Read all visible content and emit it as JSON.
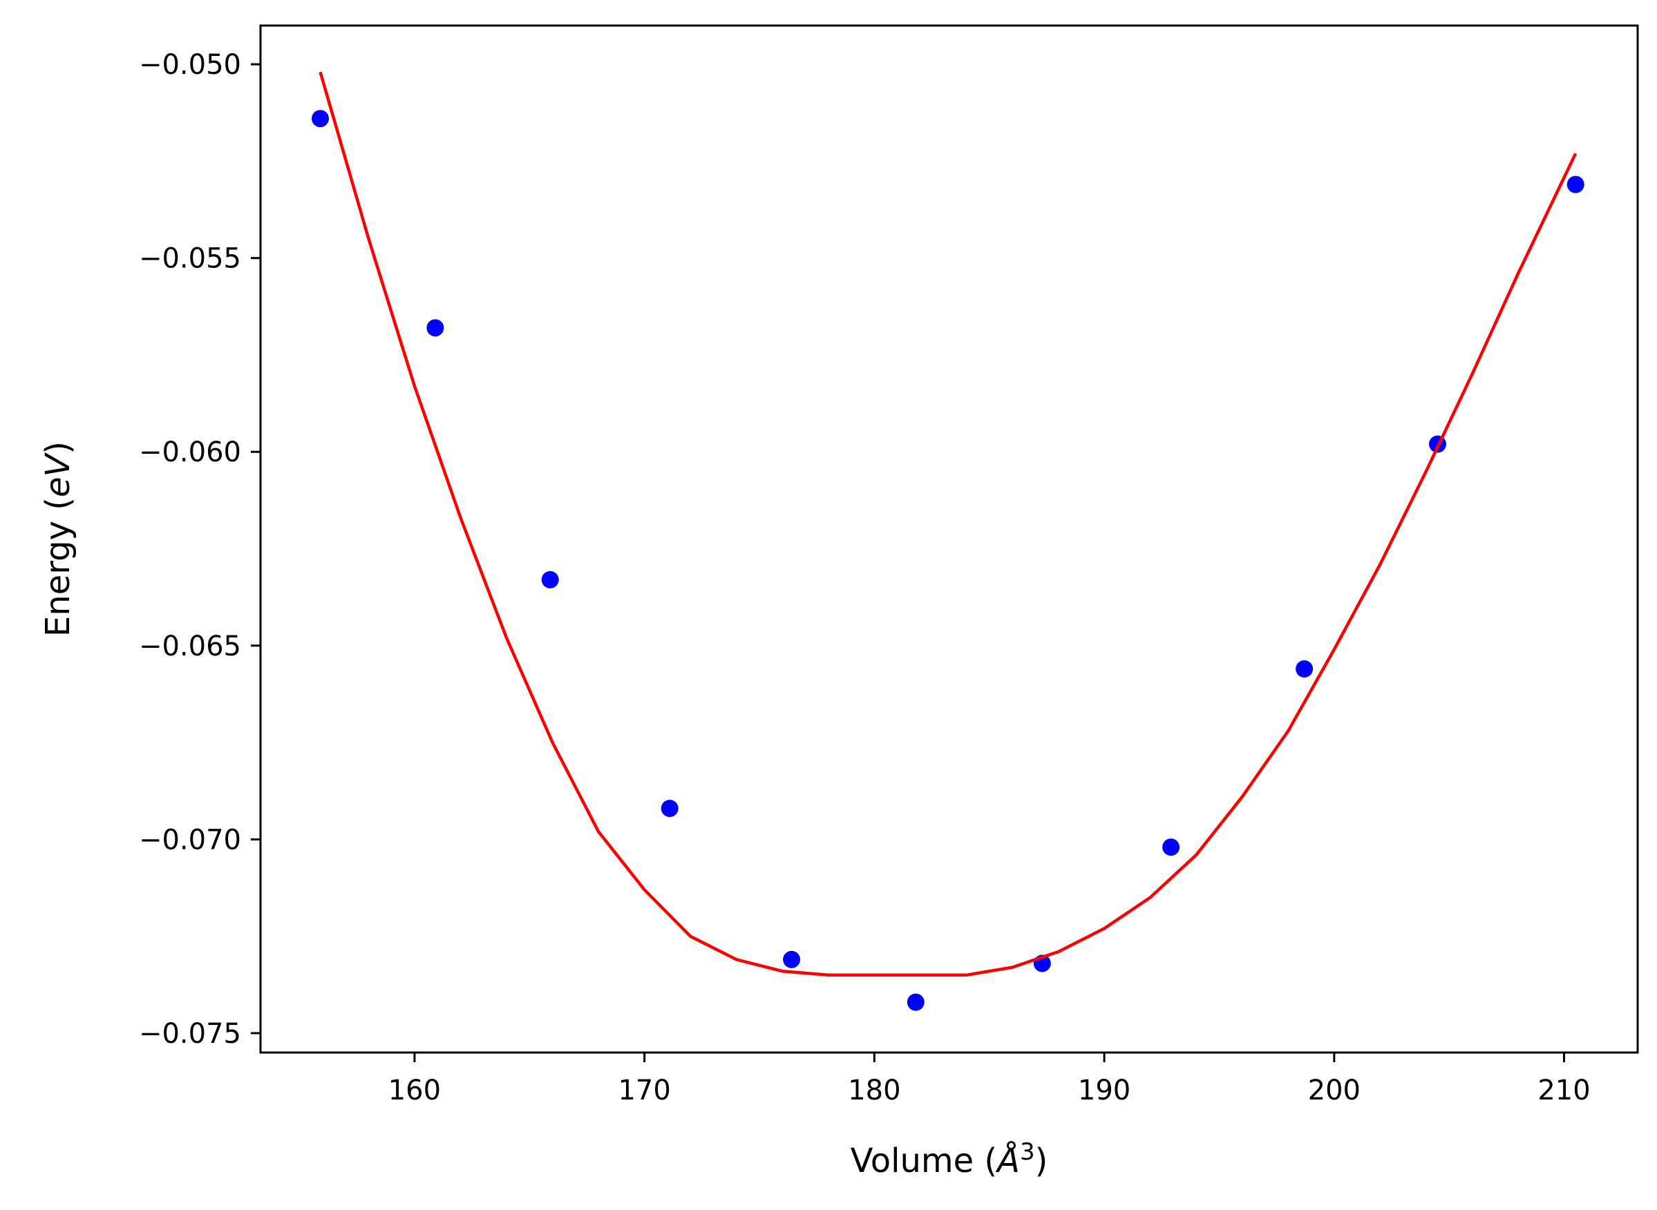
{
  "chart_data": {
    "type": "scatter",
    "title": "",
    "xlabel": "Volume (Å³)",
    "xlabel_parts": {
      "main": "Volume (",
      "italic": "Å",
      "sup": "3",
      "close": ")"
    },
    "ylabel": "Energy (eV)",
    "ylabel_parts": {
      "main": "Energy (",
      "italic": "eV",
      "close": ")"
    },
    "xlim": [
      153.3,
      213.2
    ],
    "ylim": [
      -0.0755,
      -0.049
    ],
    "xticks": [
      160,
      170,
      180,
      190,
      200,
      210
    ],
    "xtick_labels": [
      "160",
      "170",
      "180",
      "190",
      "200",
      "210"
    ],
    "yticks": [
      -0.05,
      -0.055,
      -0.06,
      -0.065,
      -0.07,
      -0.075
    ],
    "ytick_labels": [
      "−0.050",
      "−0.055",
      "−0.060",
      "−0.065",
      "−0.070",
      "−0.075"
    ],
    "grid": false,
    "series": [
      {
        "kind": "scatter",
        "color": "#0000ff",
        "x": [
          155.9,
          160.9,
          165.9,
          171.1,
          176.4,
          181.8,
          187.3,
          192.9,
          198.7,
          204.5,
          210.5
        ],
        "y": [
          -0.0514,
          -0.0568,
          -0.0633,
          -0.0692,
          -0.0731,
          -0.0742,
          -0.0732,
          -0.0702,
          -0.0656,
          -0.0598,
          -0.0531
        ]
      },
      {
        "kind": "line",
        "color": "#ff0000",
        "x": [
          155.9,
          158.0,
          160.0,
          162.0,
          164.0,
          166.0,
          168.0,
          170.0,
          172.0,
          174.0,
          176.0,
          178.0,
          180.0,
          182.0,
          183.0,
          184.0,
          186.0,
          188.0,
          190.0,
          192.0,
          194.0,
          196.0,
          198.0,
          200.0,
          202.0,
          204.0,
          206.0,
          208.0,
          210.5
        ],
        "y": [
          -0.0502,
          -0.0545,
          -0.0583,
          -0.0617,
          -0.0648,
          -0.0675,
          -0.0698,
          -0.0713,
          -0.0725,
          -0.0731,
          -0.0734,
          -0.0735,
          -0.0735,
          -0.0735,
          -0.0735,
          -0.0735,
          -0.0733,
          -0.0729,
          -0.0723,
          -0.0715,
          -0.0704,
          -0.0689,
          -0.0672,
          -0.0651,
          -0.0629,
          -0.0605,
          -0.058,
          -0.0554,
          -0.0523
        ]
      }
    ]
  }
}
